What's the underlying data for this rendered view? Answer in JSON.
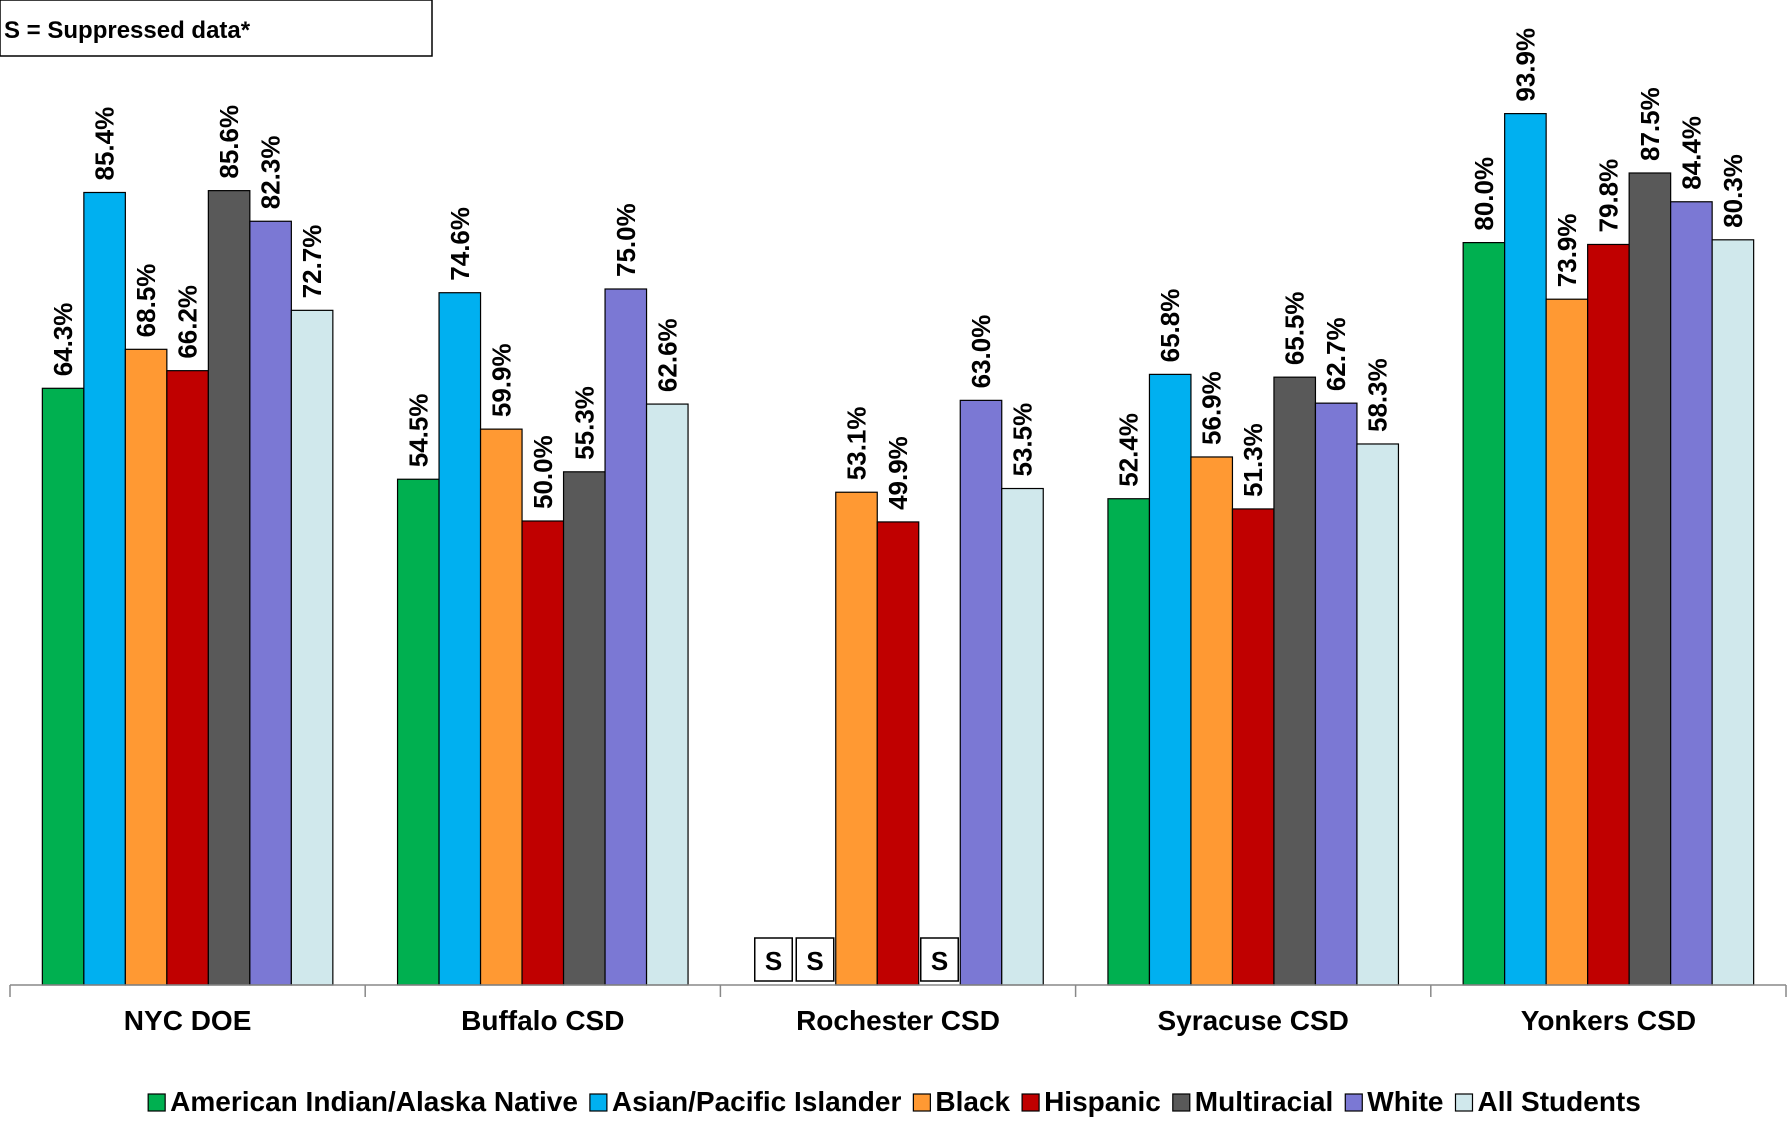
{
  "note": "S = Suppressed data*",
  "suppressed_mark": "S",
  "chart_data": {
    "type": "bar",
    "title": "",
    "xlabel": "",
    "ylabel": "",
    "ylim": [
      0,
      100
    ],
    "grid": false,
    "legend_position": "bottom",
    "value_format": "percent-1dp",
    "categories": [
      "NYC DOE",
      "Buffalo CSD",
      "Rochester CSD",
      "Syracuse CSD",
      "Yonkers CSD"
    ],
    "series": [
      {
        "name": "American Indian/Alaska Native",
        "color": "#00b050",
        "values": [
          64.3,
          54.5,
          null,
          52.4,
          80.0
        ]
      },
      {
        "name": "Asian/Pacific Islander",
        "color": "#00b0f0",
        "values": [
          85.4,
          74.6,
          null,
          65.8,
          93.9
        ]
      },
      {
        "name": "Black",
        "color": "#ff9933",
        "values": [
          68.5,
          59.9,
          53.1,
          56.9,
          73.9
        ]
      },
      {
        "name": "Hispanic",
        "color": "#c00000",
        "values": [
          66.2,
          50.0,
          49.9,
          51.3,
          79.8
        ]
      },
      {
        "name": "Multiracial",
        "color": "#595959",
        "values": [
          85.6,
          55.3,
          null,
          65.5,
          87.5
        ]
      },
      {
        "name": "White",
        "color": "#7b78d4",
        "values": [
          82.3,
          75.0,
          63.0,
          62.7,
          84.4
        ]
      },
      {
        "name": "All Students",
        "color": "#d0e8ec",
        "values": [
          72.7,
          62.6,
          53.5,
          58.3,
          80.3
        ]
      }
    ]
  }
}
